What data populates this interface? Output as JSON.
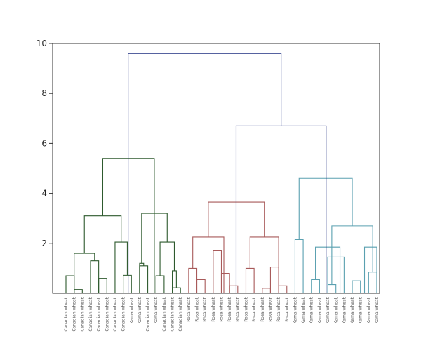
{
  "chart_data": {
    "type": "dendrogram",
    "title": "",
    "xlabel": "",
    "ylabel": "",
    "ylim": [
      0,
      10
    ],
    "yticks": [
      2,
      4,
      6,
      8,
      10
    ],
    "grid": false,
    "colors": {
      "green": "#2e5a2e",
      "red": "#a85a5a",
      "cyan": "#5aa0b0",
      "root": "#1f2f80"
    },
    "leaves": [
      "Canadian wheat",
      "Canadian wheat",
      "Canadian wheat",
      "Canadian wheat",
      "Canadian wheat",
      "Canadian wheat",
      "Canadian wheat",
      "Canadian wheat",
      "Kama wheat",
      "Kama wheat",
      "Canadian wheat",
      "Kama wheat",
      "Canadian wheat",
      "Canadian wheat",
      "Canadian wheat",
      "Rosa wheat",
      "Rosa wheat",
      "Rosa wheat",
      "Rosa wheat",
      "Rosa wheat",
      "Rosa wheat",
      "Rosa wheat",
      "Rosa wheat",
      "Rosa wheat",
      "Rosa wheat",
      "Rosa wheat",
      "Rosa wheat",
      "Rosa wheat",
      "Kama wheat",
      "Kama wheat",
      "Kama wheat",
      "Kama wheat",
      "Kama wheat",
      "Kama wheat",
      "Kama wheat",
      "Kama wheat",
      "Kama wheat",
      "Kama wheat",
      "Kama wheat"
    ],
    "merges": [
      {
        "a": {
          "leaf": 0
        },
        "b": {
          "leaf": 1
        },
        "h": 0.7,
        "color": "green"
      },
      {
        "a": {
          "leaf": 1
        },
        "b": {
          "leaf": 2
        },
        "h": 0.15,
        "color": "green"
      },
      {
        "a": {
          "leaf": 3
        },
        "b": {
          "leaf": 4
        },
        "h": 1.3,
        "color": "green"
      },
      {
        "a": {
          "leaf": 4
        },
        "b": {
          "leaf": 5
        },
        "h": 0.6,
        "color": "green"
      },
      {
        "a": {
          "leaf": 7
        },
        "b": {
          "leaf": 8
        },
        "h": 0.72,
        "color": "green"
      },
      {
        "a": {
          "leaf": 6
        },
        "b": {
          "leaf": 7.5
        },
        "h": 2.05,
        "color": "green"
      },
      {
        "a": {
          "leaf": 1.0
        },
        "b": {
          "leaf": 3.5
        },
        "h": 1.6,
        "color": "green"
      },
      {
        "a": {
          "leaf": 2.25
        },
        "b": {
          "leaf": 6.75
        },
        "h": 3.1,
        "color": "green"
      },
      {
        "a": {
          "leaf": 9
        },
        "b": {
          "leaf": 10
        },
        "h": 1.1,
        "color": "green"
      },
      {
        "a": {
          "leaf": 9
        },
        "b": {
          "leaf": 9.5
        },
        "h": 1.2,
        "color": "green"
      },
      {
        "a": {
          "leaf": 11
        },
        "b": {
          "leaf": 12
        },
        "h": 0.7,
        "color": "green"
      },
      {
        "a": {
          "leaf": 13
        },
        "b": {
          "leaf": 14
        },
        "h": 0.22,
        "color": "green"
      },
      {
        "a": {
          "leaf": 13
        },
        "b": {
          "leaf": 13.5
        },
        "h": 0.9,
        "color": "green"
      },
      {
        "a": {
          "leaf": 11.5
        },
        "b": {
          "leaf": 13.25
        },
        "h": 2.05,
        "color": "green"
      },
      {
        "a": {
          "leaf": 9.25
        },
        "b": {
          "leaf": 12.375
        },
        "h": 3.2,
        "color": "green"
      },
      {
        "a": {
          "leaf": 4.5
        },
        "b": {
          "leaf": 10.8
        },
        "h": 5.4,
        "color": "green"
      },
      {
        "a": {
          "leaf": 15
        },
        "b": {
          "leaf": 16
        },
        "h": 1.0,
        "color": "red"
      },
      {
        "a": {
          "leaf": 16
        },
        "b": {
          "leaf": 17
        },
        "h": 0.55,
        "color": "red"
      },
      {
        "a": {
          "leaf": 18
        },
        "b": {
          "leaf": 19
        },
        "h": 1.7,
        "color": "red"
      },
      {
        "a": {
          "leaf": 19
        },
        "b": {
          "leaf": 20
        },
        "h": 0.8,
        "color": "red"
      },
      {
        "a": {
          "leaf": 20
        },
        "b": {
          "leaf": 21
        },
        "h": 0.3,
        "color": "red"
      },
      {
        "a": {
          "leaf": 15.5
        },
        "b": {
          "leaf": 19.3
        },
        "h": 2.25,
        "color": "red"
      },
      {
        "a": {
          "leaf": 22
        },
        "b": {
          "leaf": 23
        },
        "h": 1.0,
        "color": "red"
      },
      {
        "a": {
          "leaf": 24
        },
        "b": {
          "leaf": 25
        },
        "h": 0.2,
        "color": "red"
      },
      {
        "a": {
          "leaf": 25
        },
        "b": {
          "leaf": 26
        },
        "h": 1.05,
        "color": "red"
      },
      {
        "a": {
          "leaf": 26
        },
        "b": {
          "leaf": 27
        },
        "h": 0.3,
        "color": "red"
      },
      {
        "a": {
          "leaf": 22.5
        },
        "b": {
          "leaf": 26.0
        },
        "h": 2.25,
        "color": "red"
      },
      {
        "a": {
          "leaf": 17.4
        },
        "b": {
          "leaf": 24.25
        },
        "h": 3.65,
        "color": "red"
      },
      {
        "a": {
          "leaf": 28
        },
        "b": {
          "leaf": 29
        },
        "h": 2.15,
        "color": "cyan"
      },
      {
        "a": {
          "leaf": 30
        },
        "b": {
          "leaf": 31
        },
        "h": 0.55,
        "color": "cyan"
      },
      {
        "a": {
          "leaf": 32
        },
        "b": {
          "leaf": 33
        },
        "h": 0.35,
        "color": "cyan"
      },
      {
        "a": {
          "leaf": 32
        },
        "b": {
          "leaf": 34
        },
        "h": 1.45,
        "color": "cyan"
      },
      {
        "a": {
          "leaf": 35
        },
        "b": {
          "leaf": 36
        },
        "h": 0.5,
        "color": "cyan"
      },
      {
        "a": {
          "leaf": 30.5
        },
        "b": {
          "leaf": 33.5
        },
        "h": 1.85,
        "color": "cyan"
      },
      {
        "a": {
          "leaf": 37
        },
        "b": {
          "leaf": 38
        },
        "h": 0.85,
        "color": "cyan"
      },
      {
        "a": {
          "leaf": 36.5
        },
        "b": {
          "leaf": 38
        },
        "h": 1.85,
        "color": "cyan"
      },
      {
        "a": {
          "leaf": 32.5
        },
        "b": {
          "leaf": 37.5
        },
        "h": 2.7,
        "color": "cyan"
      },
      {
        "a": {
          "leaf": 28.5
        },
        "b": {
          "leaf": 35.0
        },
        "h": 4.6,
        "color": "cyan"
      },
      {
        "a": {
          "leaf": 20.8
        },
        "b": {
          "leaf": 31.8
        },
        "h": 6.7,
        "color": "root"
      },
      {
        "a": {
          "leaf": 7.6
        },
        "b": {
          "leaf": 26.3
        },
        "h": 9.6,
        "color": "root"
      }
    ]
  }
}
